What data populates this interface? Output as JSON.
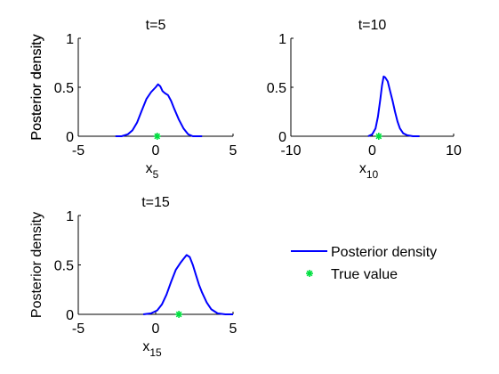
{
  "chart_data": [
    {
      "type": "line",
      "title": "t=5",
      "xlabel_main": "x",
      "xlabel_sub": "5",
      "ylabel": "Posterior density",
      "xlim": [
        -5,
        5
      ],
      "ylim": [
        0,
        1
      ],
      "xticks": [
        -5,
        0,
        5
      ],
      "yticks": [
        0,
        0.5,
        1
      ],
      "series": [
        {
          "name": "Posterior density",
          "x": [
            -2.6,
            -2.2,
            -1.8,
            -1.5,
            -1.2,
            -0.9,
            -0.6,
            -0.3,
            0.0,
            0.15,
            0.3,
            0.45,
            0.6,
            0.8,
            1.0,
            1.2,
            1.5,
            1.8,
            2.1,
            2.4,
            2.8,
            3.0
          ],
          "y": [
            0.0,
            0.0,
            0.02,
            0.06,
            0.14,
            0.26,
            0.38,
            0.45,
            0.5,
            0.53,
            0.51,
            0.46,
            0.44,
            0.42,
            0.36,
            0.28,
            0.17,
            0.08,
            0.02,
            0.0,
            0.0,
            0.0
          ]
        }
      ],
      "true_value": {
        "name": "True value",
        "x": 0.1,
        "y": 0.0
      }
    },
    {
      "type": "line",
      "title": "t=10",
      "xlabel_main": "x",
      "xlabel_sub": "10",
      "ylabel": "Posterior density",
      "xlim": [
        -10,
        10
      ],
      "ylim": [
        0,
        1
      ],
      "xticks": [
        -10,
        0,
        10
      ],
      "yticks": [
        0,
        0.5,
        1
      ],
      "series": [
        {
          "name": "Posterior density",
          "x": [
            -0.5,
            0.0,
            0.4,
            0.7,
            1.0,
            1.2,
            1.4,
            1.6,
            1.9,
            2.2,
            2.5,
            2.8,
            3.1,
            3.4,
            3.8,
            4.3,
            5.0,
            5.8
          ],
          "y": [
            0.0,
            0.02,
            0.08,
            0.2,
            0.38,
            0.52,
            0.61,
            0.6,
            0.56,
            0.46,
            0.36,
            0.25,
            0.15,
            0.08,
            0.03,
            0.01,
            0.0,
            0.0
          ]
        }
      ],
      "true_value": {
        "name": "True value",
        "x": 0.8,
        "y": 0.0
      }
    },
    {
      "type": "line",
      "title": "t=15",
      "xlabel_main": "x",
      "xlabel_sub": "15",
      "ylabel": "Posterior density",
      "xlim": [
        -5,
        5
      ],
      "ylim": [
        0,
        1
      ],
      "xticks": [
        -5,
        0,
        5
      ],
      "yticks": [
        0,
        0.5,
        1
      ],
      "series": [
        {
          "name": "Posterior density",
          "x": [
            -0.8,
            -0.3,
            0.1,
            0.4,
            0.7,
            1.0,
            1.3,
            1.6,
            1.8,
            2.0,
            2.2,
            2.4,
            2.6,
            2.8,
            3.0,
            3.3,
            3.6,
            4.0,
            4.5,
            5.0
          ],
          "y": [
            0.0,
            0.01,
            0.04,
            0.1,
            0.2,
            0.33,
            0.45,
            0.52,
            0.56,
            0.6,
            0.58,
            0.5,
            0.4,
            0.3,
            0.22,
            0.12,
            0.05,
            0.01,
            0.0,
            0.0
          ]
        }
      ],
      "true_value": {
        "name": "True value",
        "x": 1.5,
        "y": 0.0
      }
    }
  ],
  "legend": {
    "items": [
      {
        "label": "Posterior density",
        "kind": "line"
      },
      {
        "label": "True value",
        "kind": "marker"
      }
    ]
  },
  "colors": {
    "posterior_line": "#0000ff",
    "true_value_marker": "#00e040"
  }
}
